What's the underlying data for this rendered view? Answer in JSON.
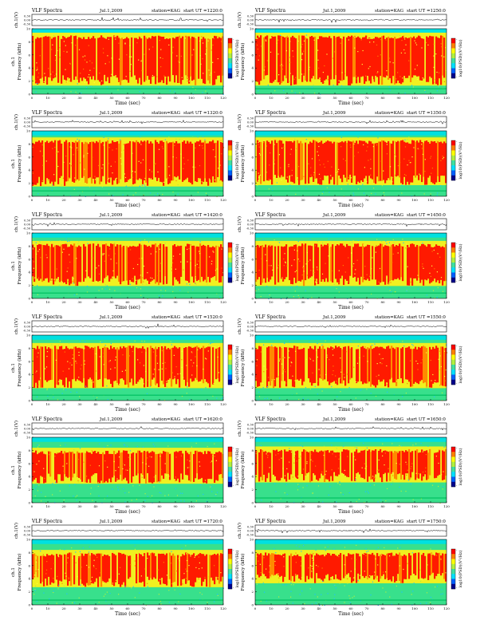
{
  "page": {
    "background": "#ffffff"
  },
  "chart_data": {
    "type": "heatmap",
    "description_labels": {
      "header_title": "VLF Spectra",
      "date": "Jul.1,2009",
      "station": "station=KAG",
      "ch_axis_label": "ch.1(V)",
      "ch_ticks": [
        "0.30",
        "0.00",
        "-0.30"
      ],
      "freq_axis_label": "Frequency (kHz)",
      "freq_axis_side_label": "ch.1",
      "freq_ticks": [
        "0",
        "2",
        "4",
        "6",
        "8",
        "10"
      ],
      "time_axis_label": "Time (sec)",
      "time_ticks": [
        "0",
        "10",
        "20",
        "30",
        "40",
        "50",
        "60",
        "70",
        "80",
        "90",
        "100",
        "110",
        "120"
      ],
      "colorbar_label": "log10(PSD)(V²/Hz)",
      "colorbar_ticks": [
        "-",
        "-"
      ]
    },
    "xlim": [
      0,
      120
    ],
    "ylim_freq_khz": [
      0,
      10
    ],
    "ylim_ch_volts": [
      -0.3,
      0.3
    ],
    "colormap": [
      "#00008b",
      "#0060ff",
      "#00e0ff",
      "#40e0a0",
      "#b0f040",
      "#ffff00",
      "#ff8000",
      "#ff0000"
    ],
    "panels": [
      {
        "start_ut": "start UT =1220:0",
        "red_top": 9.0,
        "red_bottom": 1.8,
        "green_floor": 0.9
      },
      {
        "start_ut": "start UT =1250:0",
        "red_top": 9.0,
        "red_bottom": 1.8,
        "green_floor": 0.9
      },
      {
        "start_ut": "start UT =1320:0",
        "red_top": 8.6,
        "red_bottom": 2.0,
        "green_floor": 0.9
      },
      {
        "start_ut": "start UT =1350:0",
        "red_top": 8.6,
        "red_bottom": 2.2,
        "green_floor": 0.9
      },
      {
        "start_ut": "start UT =1420:0",
        "red_top": 8.4,
        "red_bottom": 2.4,
        "green_floor": 0.9
      },
      {
        "start_ut": "start UT =1450:0",
        "red_top": 8.4,
        "red_bottom": 2.4,
        "green_floor": 0.9
      },
      {
        "start_ut": "start UT =1520:0",
        "red_top": 8.4,
        "red_bottom": 2.4,
        "green_floor": 0.9
      },
      {
        "start_ut": "start UT =1550:0",
        "red_top": 8.4,
        "red_bottom": 2.4,
        "green_floor": 0.9
      },
      {
        "start_ut": "start UT =1620:0",
        "red_top": 8.0,
        "red_bottom": 3.4,
        "green_floor": 0.8
      },
      {
        "start_ut": "start UT =1650:0",
        "red_top": 8.2,
        "red_bottom": 3.6,
        "green_floor": 0.8
      },
      {
        "start_ut": "start UT =1720:0",
        "red_top": 8.0,
        "red_bottom": 3.2,
        "green_floor": 0.8
      },
      {
        "start_ut": "start UT =1750:0",
        "red_top": 8.0,
        "red_bottom": 3.8,
        "green_floor": 0.8
      }
    ]
  }
}
